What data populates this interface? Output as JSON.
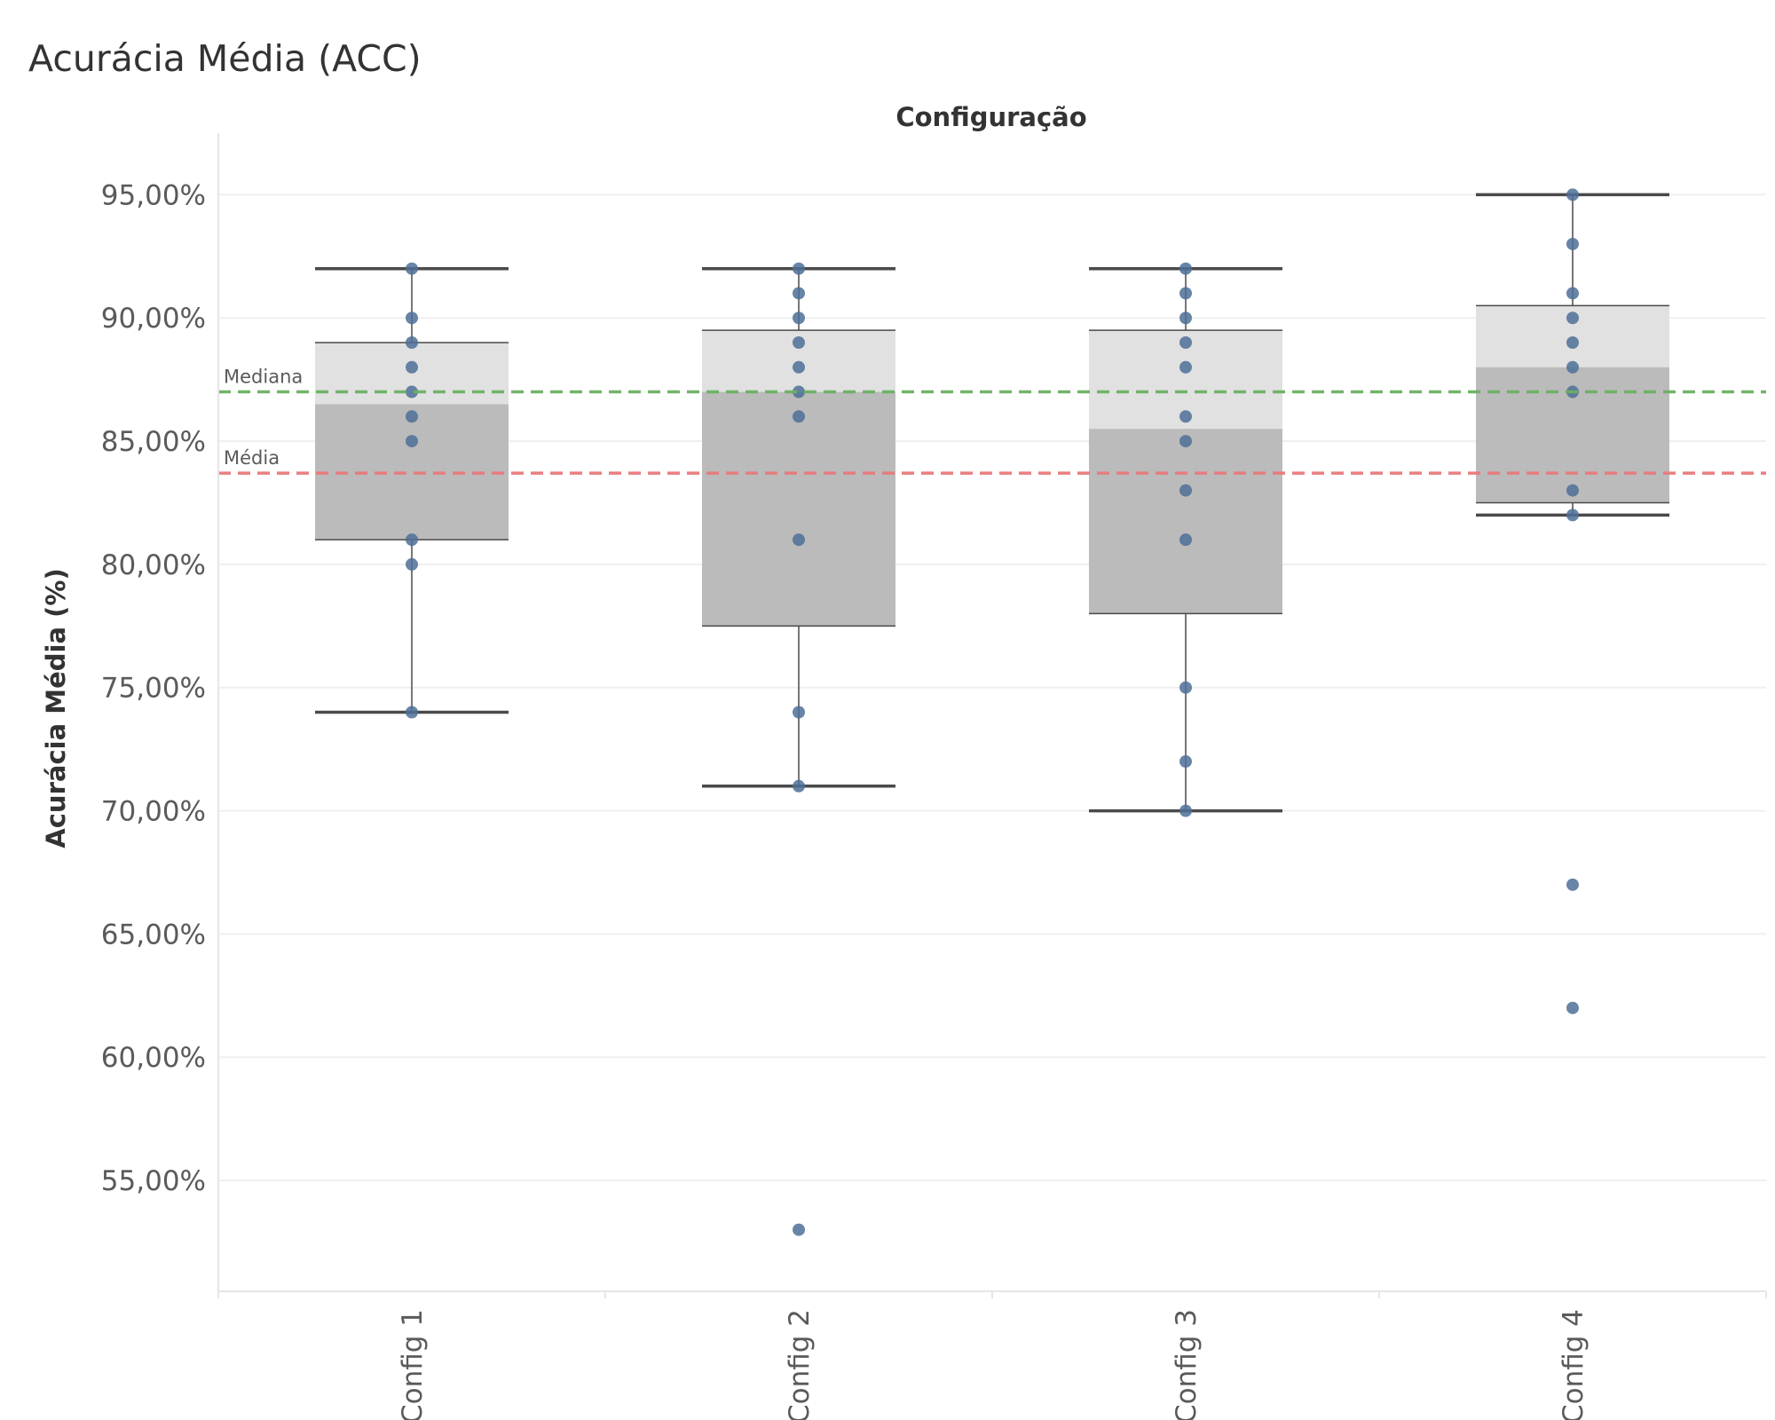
{
  "colors": {
    "point": "#4e6f96",
    "box_upper": "#e1e1e1",
    "box_lower": "#bbbbbb",
    "whisker": "#4a4a4a",
    "grid": "#efefef",
    "median_line": "#6ab061",
    "mean_line": "#e8787a"
  },
  "chart_data": {
    "type": "box_plot",
    "title": "Acurácia Média (ACC)",
    "facet_label": "Configuração",
    "ylabel": "Acurácia Média (%)",
    "xlabel": "",
    "ylim": [
      50.5,
      97.5
    ],
    "yticks": [
      {
        "value": 95,
        "label": "95,00%"
      },
      {
        "value": 90,
        "label": "90,00%"
      },
      {
        "value": 85,
        "label": "85,00%"
      },
      {
        "value": 80,
        "label": "80,00%"
      },
      {
        "value": 75,
        "label": "75,00%"
      },
      {
        "value": 70,
        "label": "70,00%"
      },
      {
        "value": 65,
        "label": "65,00%"
      },
      {
        "value": 60,
        "label": "60,00%"
      },
      {
        "value": 55,
        "label": "55,00%"
      }
    ],
    "grid": true,
    "categories": [
      "Config 1",
      "Config 2",
      "Config 3",
      "Config 4"
    ],
    "boxes": [
      {
        "category": "Config 1",
        "whisker_low": 74,
        "q1": 81,
        "median": 86.5,
        "q3": 89,
        "whisker_high": 92,
        "points": [
          92,
          90,
          89,
          88,
          87,
          86,
          85,
          81,
          80,
          74
        ]
      },
      {
        "category": "Config 2",
        "whisker_low": 71,
        "q1": 77.5,
        "median": 87,
        "q3": 89.5,
        "whisker_high": 92,
        "points": [
          92,
          91,
          90,
          89,
          88,
          87,
          86,
          81,
          74,
          71,
          53
        ]
      },
      {
        "category": "Config 3",
        "whisker_low": 70,
        "q1": 78,
        "median": 85.5,
        "q3": 89.5,
        "whisker_high": 92,
        "points": [
          92,
          91,
          90,
          89,
          88,
          86,
          85,
          83,
          81,
          75,
          72,
          70
        ]
      },
      {
        "category": "Config 4",
        "whisker_low": 82,
        "q1": 82.5,
        "median": 88,
        "q3": 90.5,
        "whisker_high": 95,
        "points": [
          95,
          93,
          91,
          90,
          89,
          88,
          87,
          83,
          82,
          67,
          62
        ]
      }
    ],
    "reference_lines": [
      {
        "label": "Mediana",
        "value": 87,
        "color": "#6ab061"
      },
      {
        "label": "Média",
        "value": 83.7,
        "color": "#e8787a"
      }
    ]
  }
}
